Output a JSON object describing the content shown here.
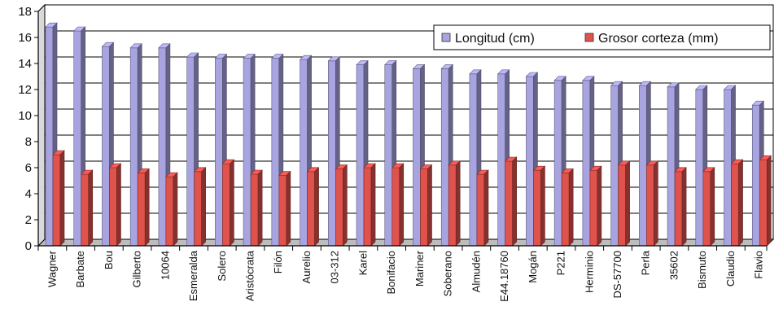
{
  "chart_data": {
    "type": "bar",
    "title": "",
    "xlabel": "",
    "ylabel": "",
    "ylim": [
      0,
      18
    ],
    "yticks": [
      0,
      2,
      4,
      6,
      8,
      10,
      12,
      14,
      16,
      18
    ],
    "grid": true,
    "legend": "top-right",
    "categories": [
      "Wagner",
      "Barbate",
      "Bou",
      "Gilberto",
      "10064",
      "Esmeralda",
      "Solero",
      "Aristócrata",
      "Filón",
      "Aurelio",
      "03-312",
      "Karel",
      "Bonifacio",
      "Mariner",
      "Soberano",
      "Almudén",
      "E44.18760",
      "Mogán",
      "P221",
      "Herminio",
      "DS-57700",
      "Perla",
      "35602",
      "Bismuto",
      "Claudio",
      "Flavio"
    ],
    "series": [
      {
        "name": "Longitud (cm)",
        "color": "#a8a4e0",
        "values": [
          16.8,
          16.5,
          15.3,
          15.2,
          15.2,
          14.5,
          14.4,
          14.4,
          14.4,
          14.3,
          14.2,
          13.9,
          13.9,
          13.6,
          13.6,
          13.2,
          13.2,
          13.0,
          12.7,
          12.7,
          12.3,
          12.3,
          12.2,
          12.0,
          12.0,
          10.8
        ]
      },
      {
        "name": "Grosor corteza (mm)",
        "color": "#e0524c",
        "values": [
          7.0,
          5.5,
          6.0,
          5.6,
          5.3,
          5.7,
          6.3,
          5.5,
          5.4,
          5.7,
          5.9,
          6.0,
          6.0,
          5.9,
          6.2,
          5.5,
          6.5,
          5.8,
          5.6,
          5.8,
          6.2,
          6.2,
          5.7,
          5.7,
          6.3,
          6.6
        ]
      }
    ]
  }
}
